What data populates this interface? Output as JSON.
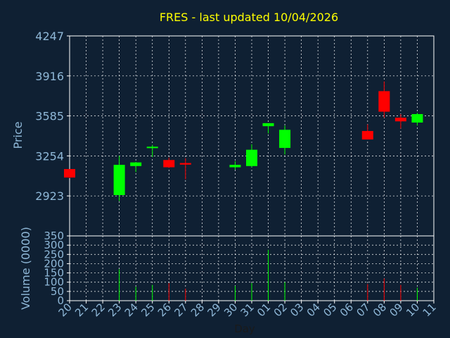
{
  "chart_data": {
    "type": "candlestick",
    "title": "FRES - last updated 10/04/2026",
    "xlabel": "Day",
    "ylabel_price": "Price",
    "ylabel_volume": "Volume (0000)",
    "price_ylim": [
      2592,
      4247
    ],
    "price_ticks": [
      "4247",
      "3916",
      "3585",
      "3254",
      "2923"
    ],
    "volume_ylim": [
      0,
      350
    ],
    "volume_ticks": [
      "350",
      "300",
      "250",
      "200",
      "150",
      "100",
      "50",
      "0"
    ],
    "days": [
      "20",
      "21",
      "22",
      "23",
      "24",
      "25",
      "26",
      "27",
      "28",
      "29",
      "30",
      "31",
      "01",
      "02",
      "03",
      "04",
      "05",
      "06",
      "07",
      "08",
      "09",
      "10",
      "11"
    ],
    "grid": true,
    "colors": {
      "up": "#00ff00",
      "down": "#ff0000",
      "title": "#ffff00",
      "axis_text": "#8fb8d8",
      "grid": "#ffffff"
    },
    "candles": [
      {
        "day": "20",
        "open": 3145,
        "high": 3145,
        "low": 3070,
        "close": 3075
      },
      {
        "day": "23",
        "open": 2930,
        "high": 3255,
        "low": 2880,
        "close": 3180
      },
      {
        "day": "24",
        "open": 3170,
        "high": 3205,
        "low": 3120,
        "close": 3200
      },
      {
        "day": "25",
        "open": 3320,
        "high": 3345,
        "low": 3245,
        "close": 3330
      },
      {
        "day": "26",
        "open": 3220,
        "high": 3240,
        "low": 3155,
        "close": 3160
      },
      {
        "day": "27",
        "open": 3195,
        "high": 3235,
        "low": 3060,
        "close": 3182
      },
      {
        "day": "30",
        "open": 3160,
        "high": 3210,
        "low": 3140,
        "close": 3180
      },
      {
        "day": "31",
        "open": 3170,
        "high": 3350,
        "low": 3160,
        "close": 3305
      },
      {
        "day": "01",
        "open": 3500,
        "high": 3525,
        "low": 3440,
        "close": 3525
      },
      {
        "day": "02",
        "open": 3320,
        "high": 3505,
        "low": 3265,
        "close": 3470
      },
      {
        "day": "07",
        "open": 3460,
        "high": 3515,
        "low": 3395,
        "close": 3390
      },
      {
        "day": "08",
        "open": 3790,
        "high": 3870,
        "low": 3570,
        "close": 3620
      },
      {
        "day": "09",
        "open": 3570,
        "high": 3600,
        "low": 3480,
        "close": 3540
      },
      {
        "day": "10",
        "open": 3530,
        "high": 3610,
        "low": 3505,
        "close": 3600
      }
    ],
    "volume": [
      {
        "day": "23",
        "value": 170,
        "dir": "up"
      },
      {
        "day": "24",
        "value": 75,
        "dir": "up"
      },
      {
        "day": "25",
        "value": 85,
        "dir": "up"
      },
      {
        "day": "26",
        "value": 95,
        "dir": "down"
      },
      {
        "day": "27",
        "value": 65,
        "dir": "down"
      },
      {
        "day": "30",
        "value": 80,
        "dir": "up"
      },
      {
        "day": "31",
        "value": 95,
        "dir": "up"
      },
      {
        "day": "01",
        "value": 275,
        "dir": "up"
      },
      {
        "day": "02",
        "value": 100,
        "dir": "up"
      },
      {
        "day": "07",
        "value": 90,
        "dir": "down"
      },
      {
        "day": "08",
        "value": 120,
        "dir": "down"
      },
      {
        "day": "09",
        "value": 85,
        "dir": "down"
      },
      {
        "day": "10",
        "value": 70,
        "dir": "up"
      }
    ]
  }
}
